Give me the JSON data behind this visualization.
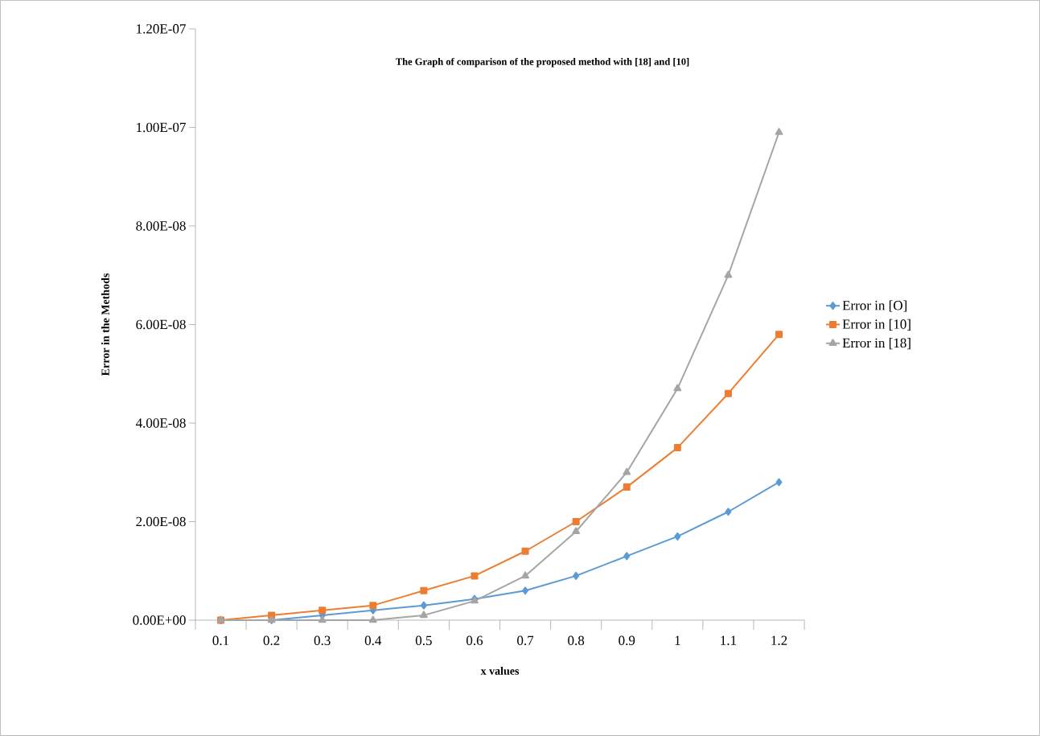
{
  "chart_data": {
    "type": "line",
    "title": "The Graph of comparison of the proposed method with [18] and [10]",
    "xlabel": "x values",
    "ylabel": "Error in the Methods",
    "categories": [
      "0.1",
      "0.2",
      "0.3",
      "0.4",
      "0.5",
      "0.6",
      "0.7",
      "0.8",
      "0.9",
      "1",
      "1.1",
      "1.2"
    ],
    "series": [
      {
        "name": "Error in [O]",
        "color": "#5b9bd5",
        "marker": "diamond",
        "values": [
          0,
          0,
          1e-09,
          2e-09,
          3e-09,
          4.3e-09,
          6e-09,
          9e-09,
          1.3e-08,
          1.7e-08,
          2.2e-08,
          2.8e-08
        ]
      },
      {
        "name": "Error in [10]",
        "color": "#ed7d31",
        "marker": "square",
        "values": [
          0,
          1e-09,
          2e-09,
          3e-09,
          6e-09,
          9e-09,
          1.4e-08,
          2e-08,
          2.7e-08,
          3.5e-08,
          4.6e-08,
          5.8e-08
        ]
      },
      {
        "name": "Error in [18]",
        "color": "#a5a5a5",
        "marker": "triangle",
        "values": [
          0,
          0,
          0,
          0,
          1e-09,
          3.9e-09,
          9e-09,
          1.8e-08,
          3e-08,
          4.7e-08,
          7e-08,
          9.9e-08
        ]
      }
    ],
    "ylim": [
      0,
      1.2e-07
    ],
    "yticks": [
      {
        "value": 0,
        "label": "0.00E+00"
      },
      {
        "value": 2e-08,
        "label": "2.00E-08"
      },
      {
        "value": 4e-08,
        "label": "4.00E-08"
      },
      {
        "value": 6e-08,
        "label": "6.00E-08"
      },
      {
        "value": 8e-08,
        "label": "8.00E-08"
      },
      {
        "value": 1e-07,
        "label": "1.00E-07"
      },
      {
        "value": 1.2e-07,
        "label": "1.20E-07"
      }
    ],
    "grid": false,
    "legend": "right",
    "line_style": "solid"
  }
}
